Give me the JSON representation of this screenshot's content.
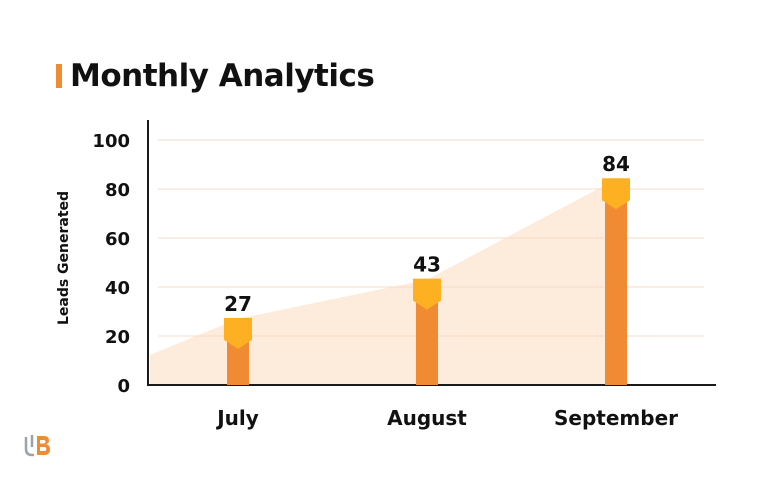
{
  "title": "Monthly Analytics",
  "colors": {
    "accent": "#F08A33",
    "bar": "#F08A33",
    "bar_cap": "#FDB021",
    "area": "#FDEBDC",
    "grid": "#F6DDC4",
    "axis": "#1A1A1A",
    "text": "#111111"
  },
  "icons": {
    "logo": "ub-logo-icon"
  },
  "chart_data": {
    "type": "bar",
    "title": "Monthly Analytics",
    "xlabel": "",
    "ylabel": "Leads Generated",
    "categories": [
      "July",
      "August",
      "September"
    ],
    "values": [
      27,
      43,
      84
    ],
    "ylim": [
      0,
      100
    ],
    "yticks": [
      0,
      20,
      40,
      60,
      80,
      100
    ],
    "grid": true,
    "background_area": true,
    "data_labels": true
  }
}
